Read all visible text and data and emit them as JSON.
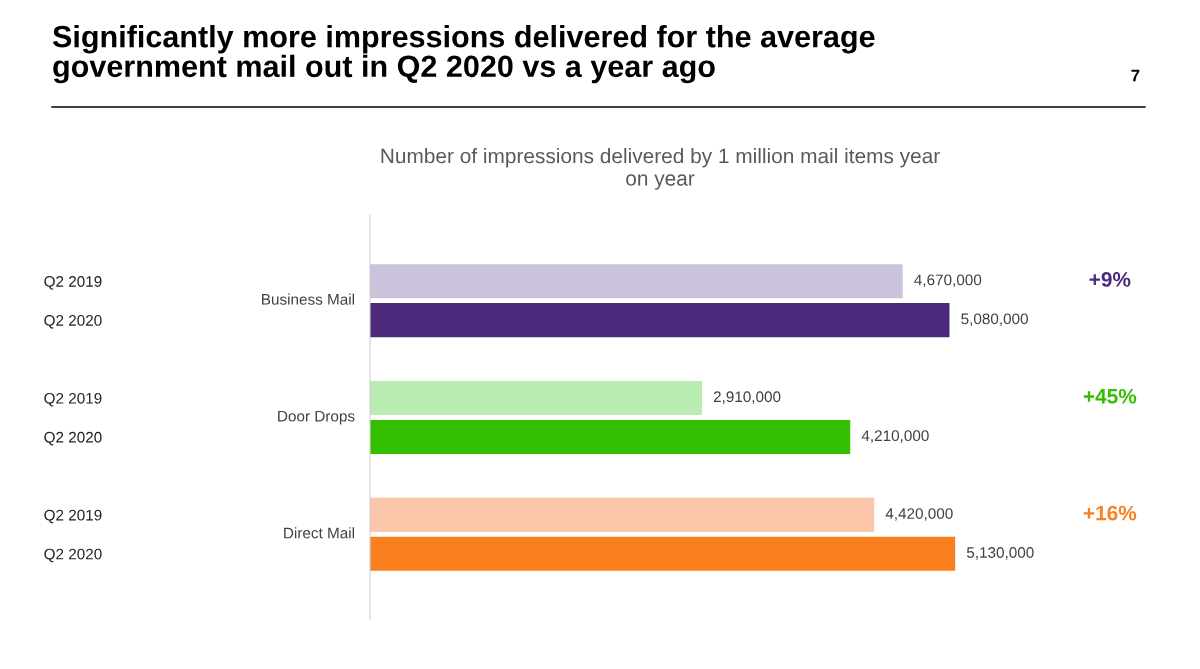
{
  "chart_data": {
    "type": "bar",
    "orientation": "horizontal",
    "title": "Significantly more impressions delivered for the average\ngovernment mail out in Q2 2020 vs a year ago",
    "subtitle": "Number of impressions delivered by 1 million mail items year\non year",
    "categories": [
      "Q2 2019",
      "Q2 2020",
      null,
      "Q2 2019",
      "Q2 2020",
      null,
      "Q2 2019",
      "Q2 2020"
    ],
    "colors": [
      "#cbc3db",
      "#4b2a7b",
      null,
      "#b9ecb0",
      "#33bf00",
      null,
      "#fcc6ab",
      "#fa7f1e"
    ],
    "values": [
      4670000,
      5080000,
      null,
      2910000,
      4210000,
      null,
      4420000,
      5130000
    ],
    "value_labels": [
      "4,670,000",
      "5,080,000",
      null,
      "2,910,000",
      "4,210,000",
      null,
      "4,420,000",
      "5,130,000"
    ],
    "annotations": [
      "Business Mail",
      "Door Drops",
      "Direct Mail",
      "+9%",
      "+45%",
      "+16%",
      "7"
    ],
    "grid": false,
    "legend": false
  }
}
